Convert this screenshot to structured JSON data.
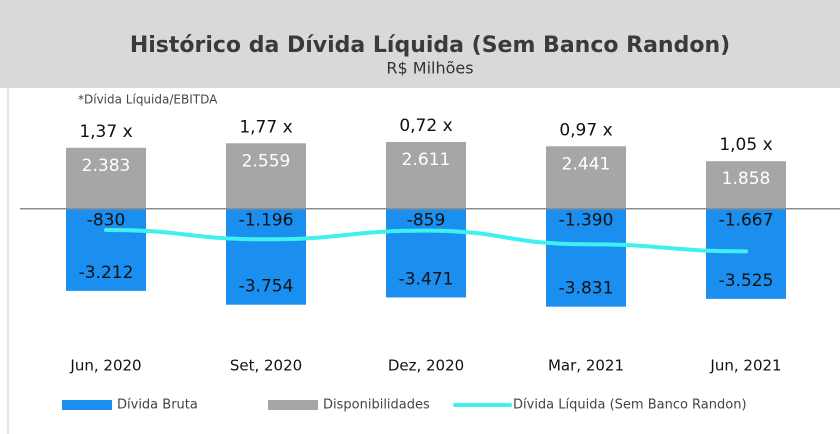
{
  "chart_data": {
    "type": "bar",
    "title": "Histórico da Dívida Líquida (Sem Banco Randon)",
    "subtitle": "R$ Milhões",
    "ratio_note": "*Dívida Líquida/EBITDA",
    "ratio_labels": [
      "1,37 x",
      "1,77 x",
      "0,72 x",
      "0,97 x",
      "1,05 x"
    ],
    "categories": [
      "Jun, 2020",
      "Set, 2020",
      "Dez, 2020",
      "Mar, 2021",
      "Jun, 2021"
    ],
    "ylim": [
      -4000,
      3000
    ],
    "series": [
      {
        "name": "Dívida Bruta",
        "color": "#1a8fef",
        "kind": "bar",
        "values": [
          -3212,
          -3754,
          -3471,
          -3831,
          -3525
        ],
        "value_labels": [
          "-3.212",
          "-3.754",
          "-3.471",
          "-3.831",
          "-3.525"
        ]
      },
      {
        "name": "Disponibilidades",
        "color": "#a6a6a6",
        "kind": "bar",
        "values": [
          2383,
          2559,
          2611,
          2441,
          1858
        ],
        "value_labels": [
          "2.383",
          "2.559",
          "2.611",
          "2.441",
          "1.858"
        ]
      },
      {
        "name": "Dívida Líquida (Sem Banco Randon)",
        "color": "#3ff0f0",
        "kind": "line",
        "values": [
          -830,
          -1196,
          -859,
          -1390,
          -1667
        ],
        "value_labels": [
          "-830",
          "-1.196",
          "-859",
          "-1.390",
          "-1.667"
        ]
      }
    ]
  }
}
